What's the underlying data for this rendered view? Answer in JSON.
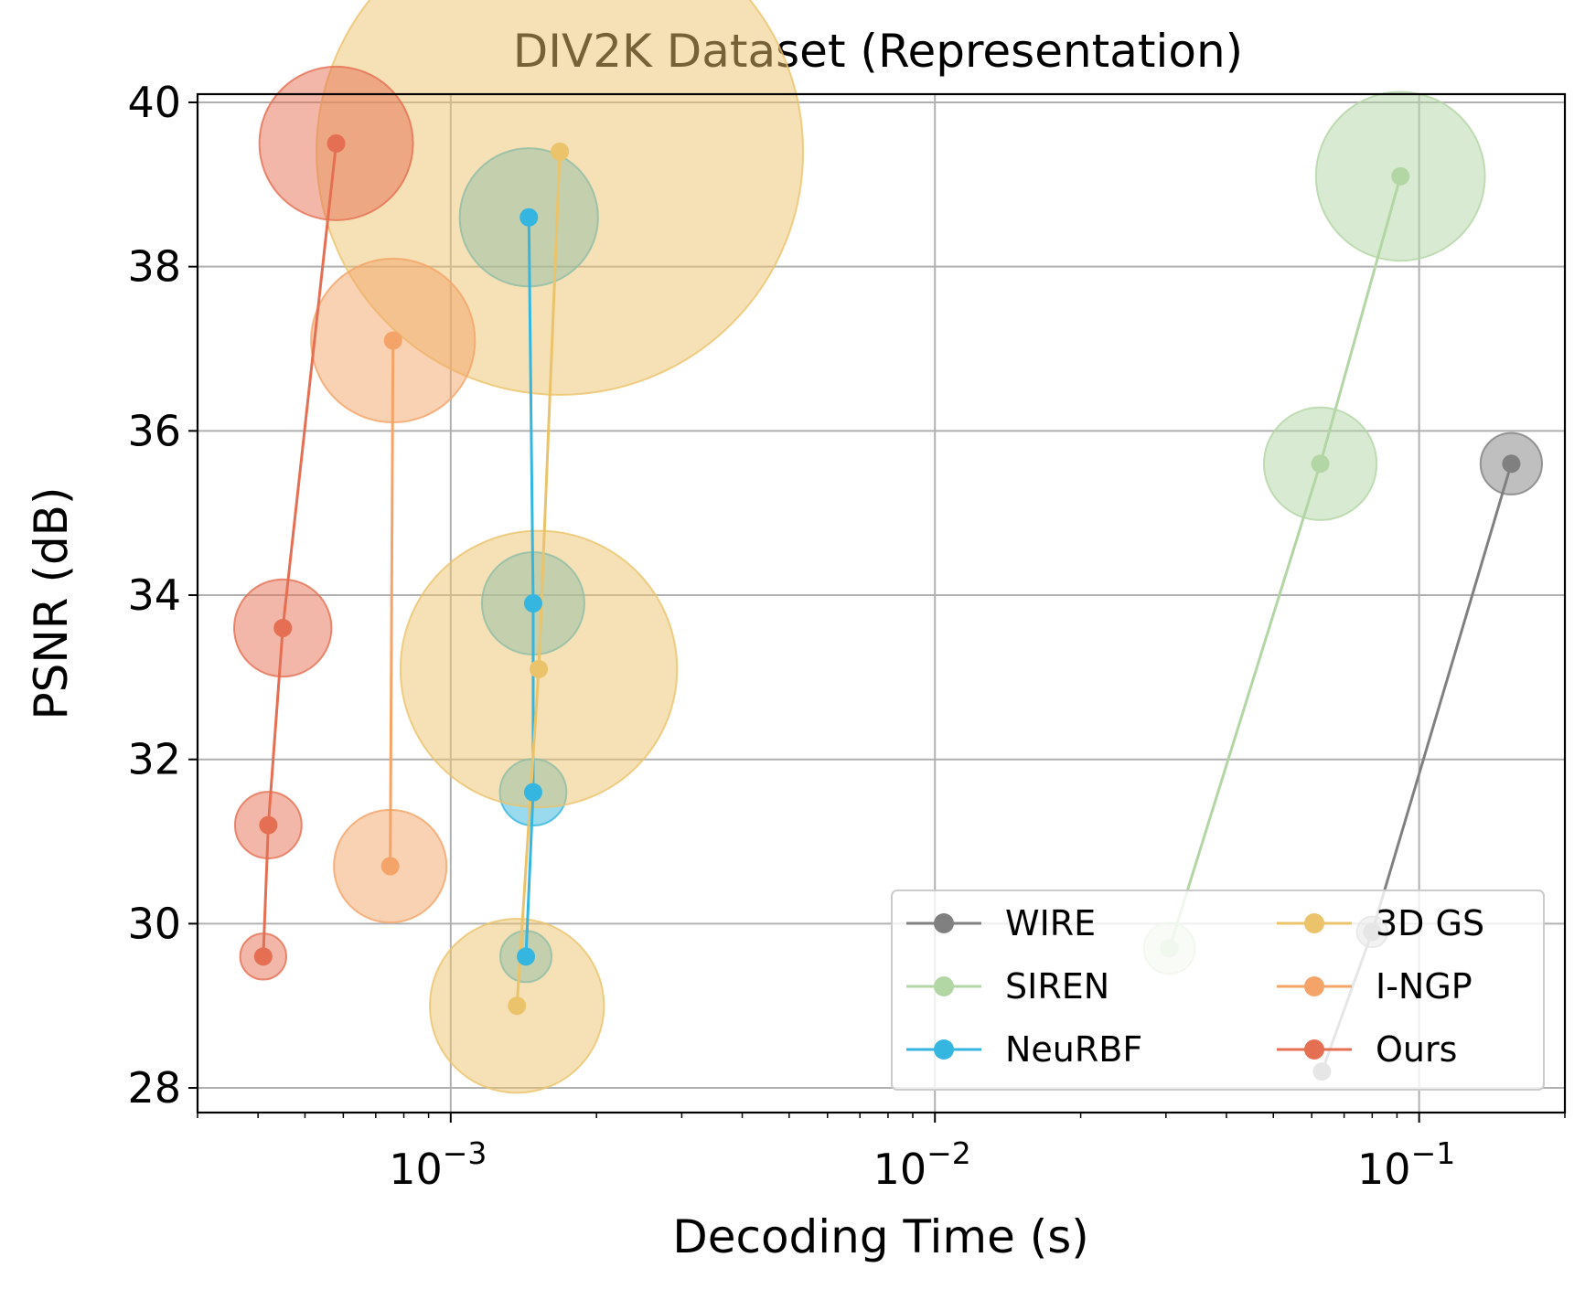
{
  "chart_data": {
    "type": "scatter",
    "title": "DIV2K Dataset (Representation)",
    "xlabel": "Decoding Time (s)",
    "ylabel": "PSNR (dB)",
    "xscale": "log",
    "xlim": [
      0.0003,
      0.2
    ],
    "ylim": [
      27.7,
      40.1
    ],
    "grid": true,
    "legend": {
      "placement": "lower-right",
      "columns": 2
    },
    "xticks": [
      {
        "value": 0.001,
        "base": "10",
        "exp": "−3"
      },
      {
        "value": 0.01,
        "base": "10",
        "exp": "−2"
      },
      {
        "value": 0.1,
        "base": "10",
        "exp": "−1"
      }
    ],
    "yticks": [
      28,
      30,
      32,
      34,
      36,
      38,
      40
    ],
    "series": [
      {
        "name": "WIRE",
        "color": "#808080",
        "points": [
          {
            "x": 0.063,
            "y": 28.2,
            "size": 0.3
          },
          {
            "x": 0.08,
            "y": 29.9,
            "size": 0.6
          },
          {
            "x": 0.155,
            "y": 35.6,
            "size": 1.2
          }
        ]
      },
      {
        "name": "SIREN",
        "color": "#b3d6a5",
        "points": [
          {
            "x": 0.0305,
            "y": 29.7,
            "size": 1.0
          },
          {
            "x": 0.0625,
            "y": 35.6,
            "size": 2.2
          },
          {
            "x": 0.0915,
            "y": 39.1,
            "size": 3.3
          }
        ]
      },
      {
        "name": "NeuRBF",
        "color": "#35b6e0",
        "points": [
          {
            "x": 0.00143,
            "y": 29.6,
            "size": 1.0
          },
          {
            "x": 0.00148,
            "y": 31.6,
            "size": 1.3
          },
          {
            "x": 0.00148,
            "y": 33.9,
            "size": 2.0
          },
          {
            "x": 0.00145,
            "y": 38.6,
            "size": 2.7
          }
        ]
      },
      {
        "name": "3D GS",
        "color": "#ebc36b",
        "points": [
          {
            "x": 0.00137,
            "y": 29.0,
            "size": 3.4
          },
          {
            "x": 0.00152,
            "y": 33.1,
            "size": 5.4
          },
          {
            "x": 0.00168,
            "y": 39.4,
            "size": 9.5
          }
        ]
      },
      {
        "name": "I-NGP",
        "color": "#f4a468",
        "points": [
          {
            "x": 0.00075,
            "y": 30.7,
            "size": 2.2
          },
          {
            "x": 0.00076,
            "y": 37.1,
            "size": 3.2
          }
        ]
      },
      {
        "name": "Ours",
        "color": "#e56f52",
        "points": [
          {
            "x": 0.00041,
            "y": 29.6,
            "size": 0.9
          },
          {
            "x": 0.00042,
            "y": 31.2,
            "size": 1.3
          },
          {
            "x": 0.00045,
            "y": 33.6,
            "size": 1.9
          },
          {
            "x": 0.00058,
            "y": 39.5,
            "size": 3.0
          }
        ]
      }
    ]
  }
}
